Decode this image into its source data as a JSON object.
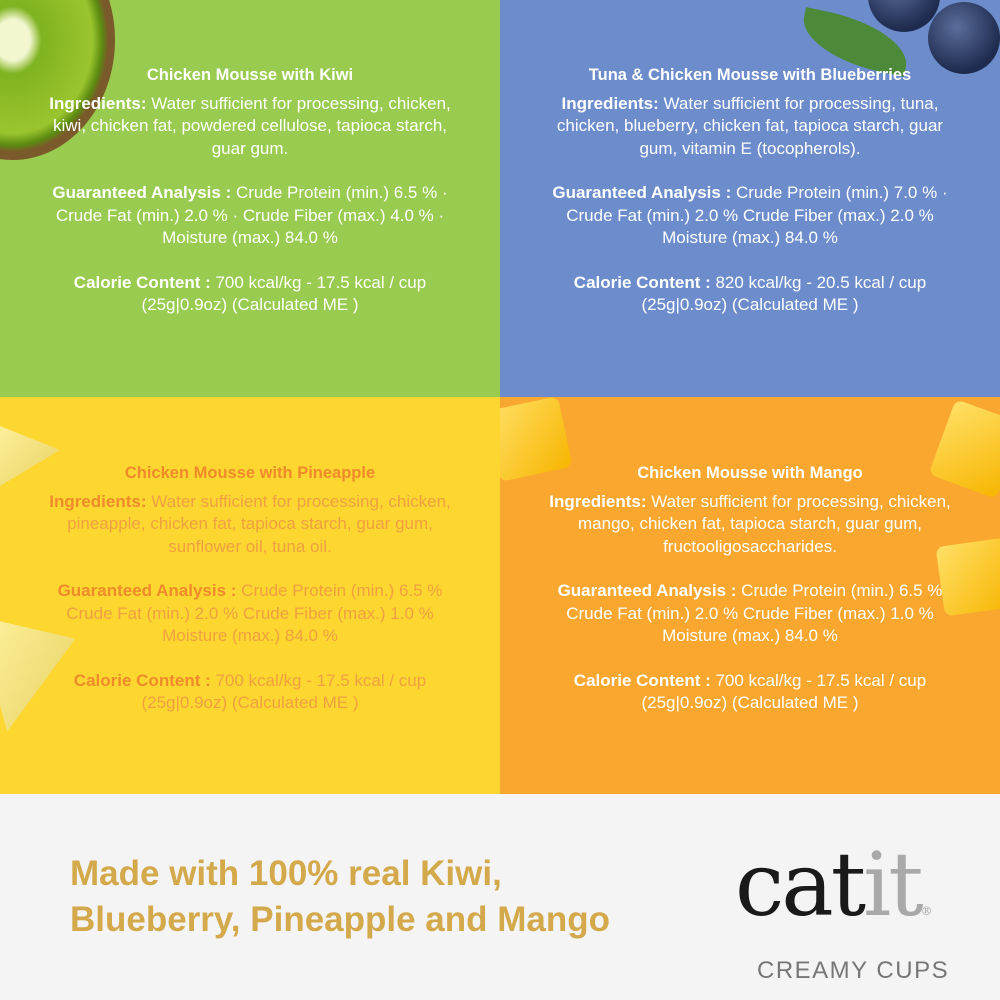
{
  "products": [
    {
      "title": "Chicken Mousse with Kiwi",
      "ingredients_label": "Ingredients:",
      "ingredients": " Water sufficient for processing, chicken, kiwi, chicken fat, powdered cellulose, tapioca starch, guar gum.",
      "analysis_label": "Guaranteed Analysis :",
      "analysis": " Crude Protein (min.) 6.5 % · Crude Fat (min.) 2.0 % · Crude Fiber (max.) 4.0 % · Moisture (max.) 84.0 %",
      "calorie_label": "Calorie Content :",
      "calorie": " 700 kcal/kg - 17.5 kcal / cup (25g|0.9oz) (Calculated ME )",
      "color": "#98cb4f"
    },
    {
      "title": "Tuna & Chicken Mousse with Blueberries",
      "ingredients_label": "Ingredients:",
      "ingredients": " Water sufficient for processing, tuna, chicken, blueberry, chicken fat, tapioca starch, guar gum, vitamin E (tocopherols).",
      "analysis_label": "Guaranteed Analysis :",
      "analysis": " Crude Protein (min.) 7.0 % · Crude Fat (min.) 2.0 % Crude Fiber (max.) 2.0 % Moisture (max.) 84.0 %",
      "calorie_label": "Calorie Content :",
      "calorie": " 820 kcal/kg - 20.5 kcal / cup (25g|0.9oz) (Calculated ME )",
      "color": "#6c8ccb"
    },
    {
      "title": "Chicken Mousse with Pineapple",
      "ingredients_label": "Ingredients:",
      "ingredients": " Water sufficient for processing, chicken, pineapple, chicken fat, tapioca starch, guar gum, sunflower oil, tuna oil.",
      "analysis_label": "Guaranteed Analysis :",
      "analysis": " Crude Protein (min.) 6.5 % Crude Fat (min.) 2.0 % Crude Fiber (max.) 1.0 % Moisture (max.) 84.0 %",
      "calorie_label": "Calorie Content :",
      "calorie": " 700 kcal/kg - 17.5 kcal / cup (25g|0.9oz) (Calculated ME )",
      "color": "#fed630"
    },
    {
      "title": "Chicken Mousse with Mango",
      "ingredients_label": "Ingredients:",
      "ingredients": " Water sufficient for processing, chicken, mango, chicken fat, tapioca starch, guar gum, fructooligosaccharides.",
      "analysis_label": "Guaranteed Analysis :",
      "analysis": " Crude Protein (min.) 6.5 % Crude Fat (min.) 2.0 % Crude Fiber (max.) 1.0 % Moisture (max.) 84.0 %",
      "calorie_label": "Calorie Content :",
      "calorie": " 700 kcal/kg - 17.5 kcal / cup (25g|0.9oz) (Calculated ME )",
      "color": "#f9a72f"
    }
  ],
  "footer": {
    "tagline_line1": "Made with 100% real Kiwi,",
    "tagline_line2": "Blueberry, Pineapple and Mango",
    "tagline_color": "#d3a94b"
  },
  "logo": {
    "word_dark": "cat",
    "word_light": "it",
    "registered": "®",
    "subtitle": "CREAMY CUPS"
  }
}
